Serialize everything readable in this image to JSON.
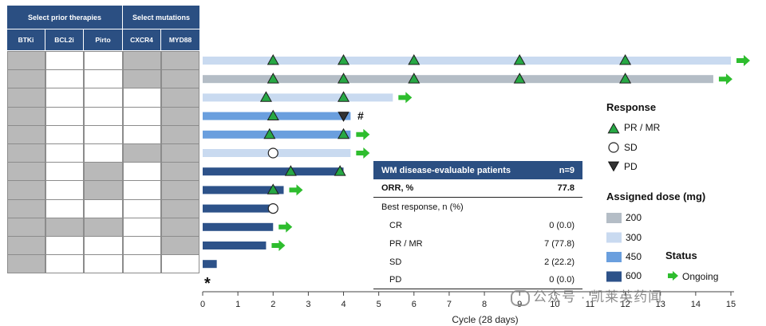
{
  "headers": {
    "prior_therapies": "Select prior therapies",
    "mutations": "Select mutations",
    "columns": [
      "BTKi",
      "BCL2i",
      "Pirto",
      "CXCR4",
      "MYD88"
    ]
  },
  "grid": [
    [
      1,
      0,
      0,
      1,
      1
    ],
    [
      1,
      0,
      0,
      1,
      1
    ],
    [
      1,
      0,
      0,
      0,
      1
    ],
    [
      1,
      0,
      0,
      0,
      1
    ],
    [
      1,
      0,
      0,
      0,
      1
    ],
    [
      1,
      0,
      0,
      1,
      1
    ],
    [
      1,
      0,
      1,
      0,
      1
    ],
    [
      1,
      0,
      1,
      0,
      1
    ],
    [
      1,
      0,
      0,
      0,
      1
    ],
    [
      1,
      1,
      1,
      0,
      1
    ],
    [
      1,
      0,
      0,
      0,
      1
    ],
    [
      1,
      0,
      0,
      0,
      0
    ]
  ],
  "chart_data": {
    "type": "swimmer",
    "xlabel": "Cycle (28 days)",
    "xlim": [
      0,
      15
    ],
    "xticks": [
      "0",
      "1",
      "2",
      "3",
      "4",
      "5",
      "6",
      "7",
      "8",
      "9",
      "10",
      "11",
      "12",
      "13",
      "14",
      "15"
    ],
    "dose_colors": {
      "200": "#b4bdc6",
      "300": "#c9daf0",
      "450": "#6a9fde",
      "600": "#2d5289"
    },
    "patients": [
      {
        "dose": "300",
        "end": 15.0,
        "ongoing": true,
        "events": [
          {
            "c": 2,
            "r": "PR"
          },
          {
            "c": 4,
            "r": "PR"
          },
          {
            "c": 6,
            "r": "PR"
          },
          {
            "c": 9,
            "r": "PR"
          },
          {
            "c": 12,
            "r": "PR"
          }
        ]
      },
      {
        "dose": "200",
        "end": 14.5,
        "ongoing": true,
        "events": [
          {
            "c": 2,
            "r": "PR"
          },
          {
            "c": 4,
            "r": "PR"
          },
          {
            "c": 6,
            "r": "PR"
          },
          {
            "c": 9,
            "r": "PR"
          },
          {
            "c": 12,
            "r": "PR"
          }
        ]
      },
      {
        "dose": "300",
        "end": 5.4,
        "ongoing": true,
        "events": [
          {
            "c": 1.8,
            "r": "PR"
          },
          {
            "c": 4,
            "r": "PR"
          }
        ]
      },
      {
        "dose": "450",
        "end": 4.2,
        "ongoing": false,
        "events": [
          {
            "c": 2,
            "r": "PR"
          },
          {
            "c": 4,
            "r": "PD"
          }
        ]
      },
      {
        "dose": "450",
        "end": 4.2,
        "ongoing": true,
        "events": [
          {
            "c": 1.9,
            "r": "PR"
          },
          {
            "c": 4,
            "r": "PR"
          }
        ]
      },
      {
        "dose": "300",
        "end": 4.2,
        "ongoing": true,
        "events": [
          {
            "c": 2,
            "r": "SD"
          }
        ]
      },
      {
        "dose": "600",
        "end": 4.0,
        "ongoing": false,
        "events": [
          {
            "c": 2.5,
            "r": "PR"
          },
          {
            "c": 3.9,
            "r": "PR"
          }
        ]
      },
      {
        "dose": "600",
        "end": 2.3,
        "ongoing": true,
        "events": [
          {
            "c": 2,
            "r": "PR"
          }
        ]
      },
      {
        "dose": "600",
        "end": 2.0,
        "ongoing": false,
        "events": [
          {
            "c": 2,
            "r": "SD"
          }
        ]
      },
      {
        "dose": "600",
        "end": 2.0,
        "ongoing": true,
        "events": []
      },
      {
        "dose": "600",
        "end": 1.8,
        "ongoing": true,
        "events": []
      },
      {
        "dose": "600",
        "end": 0.4,
        "ongoing": false,
        "events": []
      }
    ],
    "annotations": {
      "hash": "#",
      "asterisk": "*"
    }
  },
  "legend": {
    "response_title": "Response",
    "response_items": [
      "PR / MR",
      "SD",
      "PD"
    ],
    "dose_title": "Assigned dose (mg)",
    "dose_items": [
      "200",
      "300",
      "450",
      "600"
    ],
    "status_title": "Status",
    "status_item": "Ongoing"
  },
  "table": {
    "header_label": "WM disease-evaluable patients",
    "header_value": "n=9",
    "orr_label": "ORR, %",
    "orr_value": "77.8",
    "best_label": "Best response, n (%)",
    "rows": [
      {
        "label": "CR",
        "value": "0 (0.0)"
      },
      {
        "label": "PR / MR",
        "value": "7 (77.8)"
      },
      {
        "label": "SD",
        "value": "2 (22.2)"
      },
      {
        "label": "PD",
        "value": "0 (0.0)"
      }
    ]
  },
  "watermark": "公众号 · 凯莱英药闻"
}
